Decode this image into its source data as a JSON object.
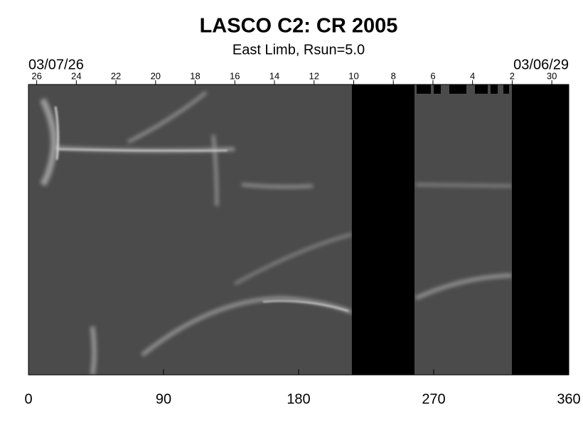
{
  "chart_data": {
    "type": "synoptic",
    "title": "LASCO C2: CR 2005",
    "subtitle": "East Limb, Rsun=5.0",
    "start_date": "03/07/26",
    "end_date": "03/06/29",
    "xlim": [
      0,
      360
    ],
    "xticks": [
      0,
      90,
      180,
      270,
      360
    ],
    "top_ticks": [
      {
        "value": 5.5,
        "label": "26"
      },
      {
        "value": 31.9,
        "label": "24"
      },
      {
        "value": 58.3,
        "label": "22"
      },
      {
        "value": 84.7,
        "label": "20"
      },
      {
        "value": 111.1,
        "label": "18"
      },
      {
        "value": 137.5,
        "label": "16"
      },
      {
        "value": 163.9,
        "label": "14"
      },
      {
        "value": 190.3,
        "label": "12"
      },
      {
        "value": 216.7,
        "label": "10"
      },
      {
        "value": 243.1,
        "label": "8"
      },
      {
        "value": 269.5,
        "label": "6"
      },
      {
        "value": 295.9,
        "label": "4"
      },
      {
        "value": 322.3,
        "label": "2"
      },
      {
        "value": 348.7,
        "label": "30"
      }
    ],
    "data_gaps": [
      [
        215.5,
        257.2
      ],
      [
        322.1,
        360
      ]
    ],
    "gap_color": "#000000"
  }
}
